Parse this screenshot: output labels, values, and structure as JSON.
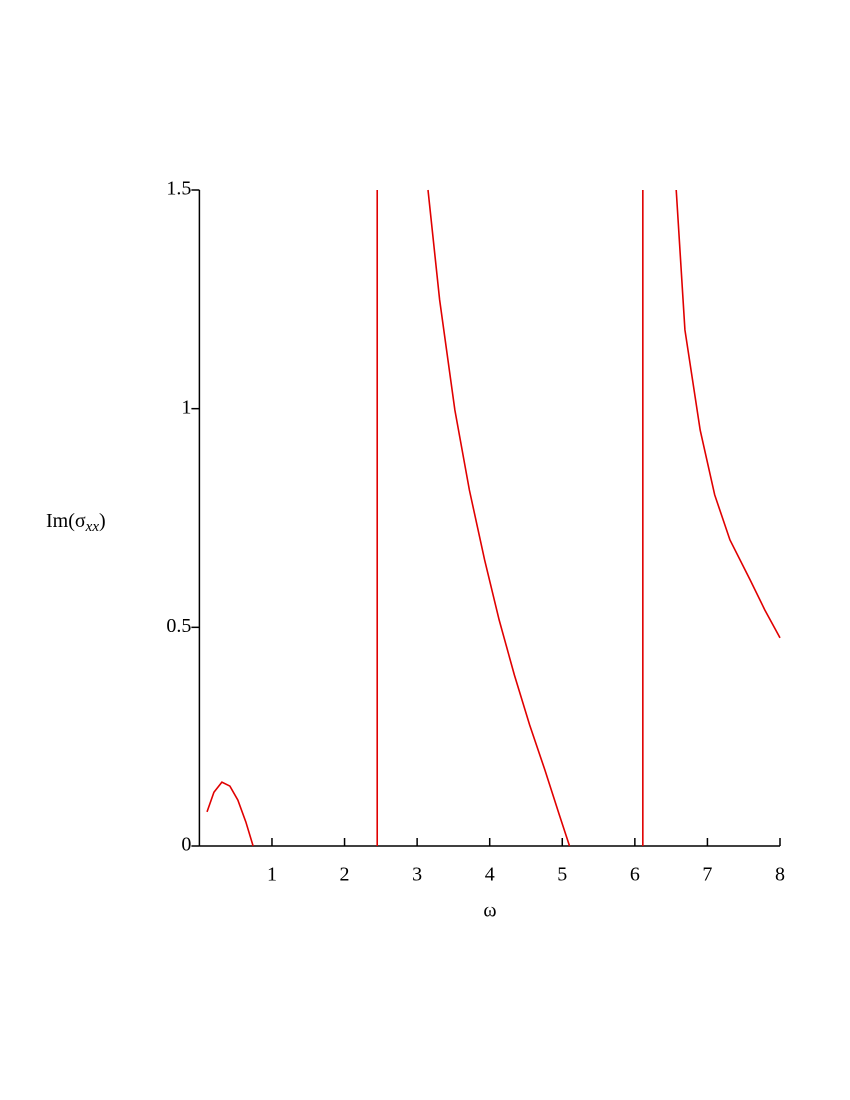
{
  "chart_data": {
    "type": "line",
    "xlabel": "ω",
    "ylabel": {
      "text": "Im(σ",
      "sub": "xx",
      "close": ")"
    },
    "x": [
      0.105,
      0.2,
      0.31,
      0.42,
      0.53,
      0.64,
      0.74,
      null,
      2.45,
      2.45,
      null,
      3.15,
      3.31,
      3.52,
      3.72,
      3.93,
      4.13,
      4.34,
      4.55,
      4.76,
      4.96,
      5.1,
      null,
      6.11,
      6.11,
      null,
      6.57,
      6.69,
      6.9,
      7.1,
      7.31,
      7.59,
      7.79,
      8.0
    ],
    "series": [
      {
        "color": "#e00000",
        "values": [
          0.078,
          0.123,
          0.146,
          0.137,
          0.105,
          0.055,
          0,
          null,
          0,
          1.5,
          null,
          1.5,
          1.249,
          0.997,
          0.814,
          0.654,
          0.517,
          0.391,
          0.277,
          0.174,
          0.071,
          0,
          null,
          0,
          1.5,
          null,
          1.5,
          1.18,
          0.951,
          0.803,
          0.7,
          0.608,
          0.54,
          0.476
        ]
      }
    ],
    "xlim": [
      0,
      8
    ],
    "ylim": [
      0,
      1.5
    ],
    "xticks": [
      1,
      2,
      3,
      4,
      5,
      6,
      7,
      8
    ],
    "yticks": [
      0,
      0.5,
      1,
      1.5
    ]
  }
}
